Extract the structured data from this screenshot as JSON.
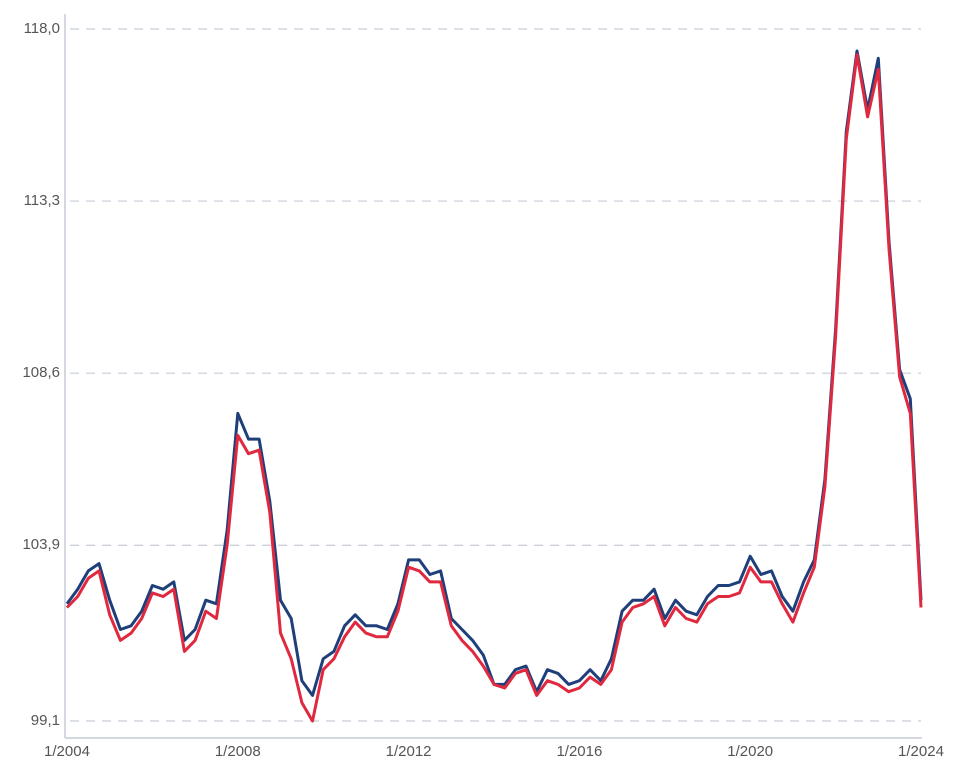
{
  "chart_data": {
    "type": "line",
    "x": [
      "1/2004",
      "4/2004",
      "7/2004",
      "10/2004",
      "1/2005",
      "4/2005",
      "7/2005",
      "10/2005",
      "1/2006",
      "4/2006",
      "7/2006",
      "10/2006",
      "1/2007",
      "4/2007",
      "7/2007",
      "10/2007",
      "1/2008",
      "4/2008",
      "7/2008",
      "10/2008",
      "1/2009",
      "4/2009",
      "7/2009",
      "10/2009",
      "1/2010",
      "4/2010",
      "7/2010",
      "10/2010",
      "1/2011",
      "4/2011",
      "7/2011",
      "10/2011",
      "1/2012",
      "4/2012",
      "7/2012",
      "10/2012",
      "1/2013",
      "4/2013",
      "7/2013",
      "10/2013",
      "1/2014",
      "4/2014",
      "7/2014",
      "10/2014",
      "1/2015",
      "4/2015",
      "7/2015",
      "10/2015",
      "1/2016",
      "4/2016",
      "7/2016",
      "10/2016",
      "1/2017",
      "4/2017",
      "7/2017",
      "10/2017",
      "1/2018",
      "4/2018",
      "7/2018",
      "10/2018",
      "1/2019",
      "4/2019",
      "7/2019",
      "10/2019",
      "1/2020",
      "4/2020",
      "7/2020",
      "10/2020",
      "1/2021",
      "4/2021",
      "7/2021",
      "10/2021",
      "1/2022",
      "4/2022",
      "7/2022",
      "10/2022",
      "1/2023",
      "4/2023",
      "7/2023",
      "10/2023",
      "1/2024"
    ],
    "series": [
      {
        "color": "#1f3f7a",
        "values": [
          102.3,
          102.7,
          103.2,
          103.4,
          102.4,
          101.6,
          101.7,
          102.1,
          102.8,
          102.7,
          102.9,
          101.3,
          101.6,
          102.4,
          102.3,
          104.3,
          107.5,
          106.8,
          106.8,
          105.1,
          102.4,
          101.9,
          100.2,
          99.8,
          100.8,
          101.0,
          101.7,
          102.0,
          101.7,
          101.7,
          101.6,
          102.3,
          103.5,
          103.5,
          103.1,
          103.2,
          101.9,
          101.6,
          101.3,
          100.9,
          100.1,
          100.1,
          100.5,
          100.6,
          99.9,
          100.5,
          100.4,
          100.1,
          100.2,
          100.5,
          100.2,
          100.8,
          102.1,
          102.4,
          102.4,
          102.7,
          101.9,
          102.4,
          102.1,
          102.0,
          102.5,
          102.8,
          102.8,
          102.9,
          103.6,
          103.1,
          103.2,
          102.5,
          102.1,
          102.9,
          103.5,
          105.7,
          109.8,
          115.2,
          117.4,
          115.8,
          117.2,
          112.2,
          108.7,
          107.9,
          102.4
        ]
      },
      {
        "color": "#e0283f",
        "values": [
          102.2,
          102.5,
          103.0,
          103.2,
          102.0,
          101.3,
          101.5,
          101.9,
          102.6,
          102.5,
          102.7,
          101.0,
          101.3,
          102.1,
          101.9,
          103.9,
          106.9,
          106.4,
          106.5,
          104.8,
          101.5,
          100.8,
          99.6,
          99.1,
          100.5,
          100.8,
          101.4,
          101.8,
          101.5,
          101.4,
          101.4,
          102.1,
          103.3,
          103.2,
          102.9,
          102.9,
          101.7,
          101.3,
          101.0,
          100.6,
          100.1,
          100.0,
          100.4,
          100.5,
          99.8,
          100.2,
          100.1,
          99.9,
          100.0,
          100.3,
          100.1,
          100.5,
          101.8,
          102.2,
          102.3,
          102.5,
          101.7,
          102.2,
          101.9,
          101.8,
          102.3,
          102.5,
          102.5,
          102.6,
          103.3,
          102.9,
          102.9,
          102.3,
          101.8,
          102.6,
          103.3,
          105.5,
          109.6,
          115.0,
          117.3,
          115.6,
          116.9,
          112.0,
          108.5,
          107.5,
          102.2
        ]
      }
    ],
    "ylim": [
      99.1,
      118.0
    ],
    "yticks": [
      {
        "value": 99.1,
        "label": "99,1"
      },
      {
        "value": 103.9,
        "label": "103,9"
      },
      {
        "value": 108.6,
        "label": "108,6"
      },
      {
        "value": 113.3,
        "label": "113,3"
      },
      {
        "value": 118.0,
        "label": "118,0"
      }
    ],
    "grid": true
  }
}
